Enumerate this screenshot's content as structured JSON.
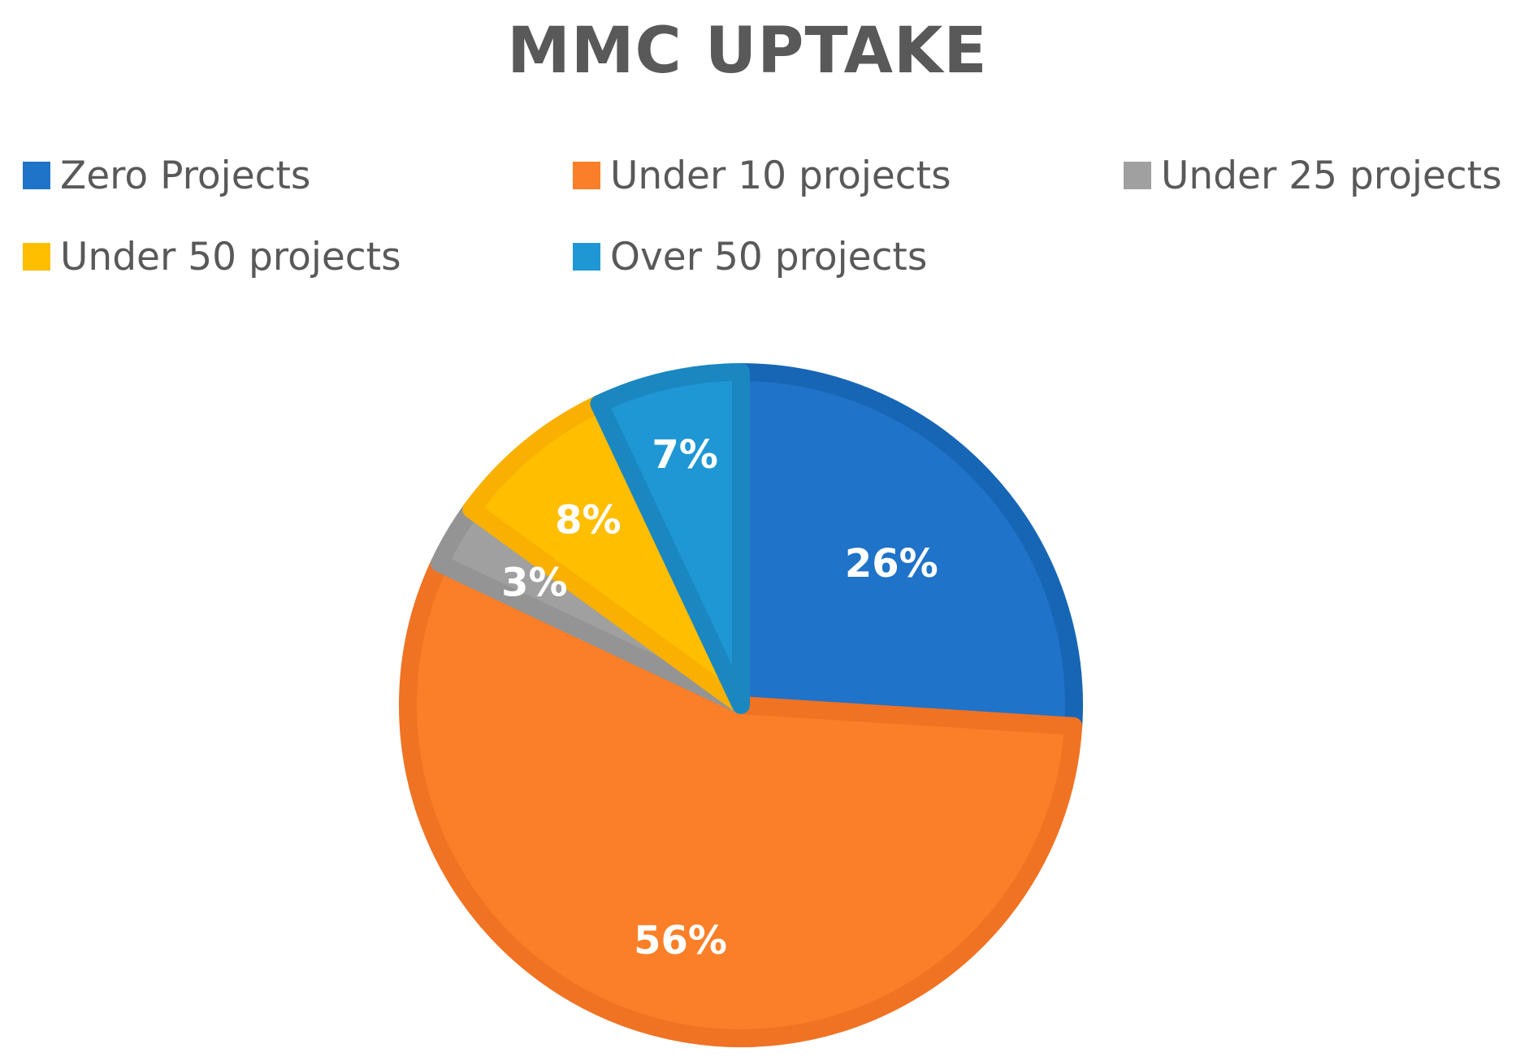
{
  "chart_data": {
    "type": "pie",
    "title": "MMC UPTAKE",
    "categories": [
      "Zero Projects",
      "Under 10 projects",
      "Under 25 projects",
      "Under 50 projects",
      "Over 50 projects"
    ],
    "values": [
      26,
      56,
      3,
      8,
      7
    ],
    "labels": [
      "26%",
      "56%",
      "3%",
      "8%",
      "7%"
    ],
    "colors": [
      "#1F73C9",
      "#FA7F28",
      "#A0A0A0",
      "#FFBE00",
      "#1E97D4"
    ],
    "edge_colors": [
      "#1766B5",
      "#F07223",
      "#949494",
      "#F9B000",
      "#1A87C1"
    ],
    "legend_position": "top"
  }
}
